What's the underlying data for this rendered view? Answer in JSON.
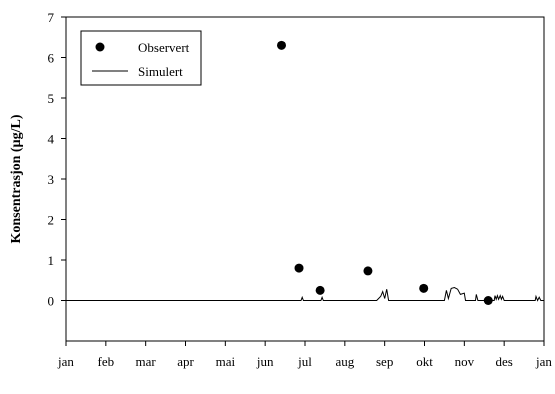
{
  "chart_data": {
    "type": "scatter",
    "title": "",
    "xlabel": "",
    "ylabel": "Konsentrasjon (µg/L)",
    "x_ticks": [
      "jan",
      "feb",
      "mar",
      "apr",
      "mai",
      "jun",
      "jul",
      "aug",
      "sep",
      "okt",
      "nov",
      "des",
      "jan"
    ],
    "ylim": [
      -1,
      7
    ],
    "y_ticks": [
      0,
      1,
      2,
      3,
      4,
      5,
      6,
      7
    ],
    "y_tick_labels": [
      "0",
      "1",
      "2",
      "3",
      "4",
      "5",
      "6",
      "7"
    ],
    "grid": false,
    "legend": {
      "position": "top-left",
      "boxed": true
    },
    "series": [
      {
        "name": "Observert",
        "kind": "markers",
        "color": "#000000",
        "points": [
          {
            "month": 5.41,
            "y": 6.3
          },
          {
            "month": 5.85,
            "y": 0.8
          },
          {
            "month": 6.38,
            "y": 0.25
          },
          {
            "month": 7.58,
            "y": 0.73
          },
          {
            "month": 8.98,
            "y": 0.3
          },
          {
            "month": 10.6,
            "y": 0.0
          }
        ]
      },
      {
        "name": "Simulert",
        "kind": "line",
        "color": "#000000",
        "points": [
          {
            "month": 0.0,
            "y": 0.0
          },
          {
            "month": 5.9,
            "y": 0.0
          },
          {
            "month": 5.93,
            "y": 0.08
          },
          {
            "month": 5.96,
            "y": 0.0
          },
          {
            "month": 6.4,
            "y": 0.0
          },
          {
            "month": 6.43,
            "y": 0.08
          },
          {
            "month": 6.46,
            "y": 0.0
          },
          {
            "month": 7.8,
            "y": 0.0
          },
          {
            "month": 7.9,
            "y": 0.1
          },
          {
            "month": 7.95,
            "y": 0.22
          },
          {
            "month": 8.0,
            "y": 0.05
          },
          {
            "month": 8.05,
            "y": 0.28
          },
          {
            "month": 8.1,
            "y": 0.0
          },
          {
            "month": 9.5,
            "y": 0.0
          },
          {
            "month": 9.55,
            "y": 0.25
          },
          {
            "month": 9.6,
            "y": 0.05
          },
          {
            "month": 9.67,
            "y": 0.3
          },
          {
            "month": 9.75,
            "y": 0.32
          },
          {
            "month": 9.83,
            "y": 0.28
          },
          {
            "month": 9.9,
            "y": 0.15
          },
          {
            "month": 10.0,
            "y": 0.18
          },
          {
            "month": 10.03,
            "y": 0.0
          },
          {
            "month": 10.28,
            "y": 0.0
          },
          {
            "month": 10.3,
            "y": 0.15
          },
          {
            "month": 10.34,
            "y": 0.0
          },
          {
            "month": 10.75,
            "y": 0.0
          },
          {
            "month": 10.77,
            "y": 0.12
          },
          {
            "month": 10.8,
            "y": 0.03
          },
          {
            "month": 10.83,
            "y": 0.12
          },
          {
            "month": 10.86,
            "y": 0.03
          },
          {
            "month": 10.9,
            "y": 0.12
          },
          {
            "month": 10.93,
            "y": 0.03
          },
          {
            "month": 10.96,
            "y": 0.1
          },
          {
            "month": 11.0,
            "y": 0.0
          },
          {
            "month": 11.78,
            "y": 0.0
          },
          {
            "month": 11.8,
            "y": 0.1
          },
          {
            "month": 11.84,
            "y": 0.0
          },
          {
            "month": 11.88,
            "y": 0.08
          },
          {
            "month": 11.92,
            "y": 0.0
          },
          {
            "month": 12.0,
            "y": 0.0
          }
        ]
      }
    ]
  }
}
